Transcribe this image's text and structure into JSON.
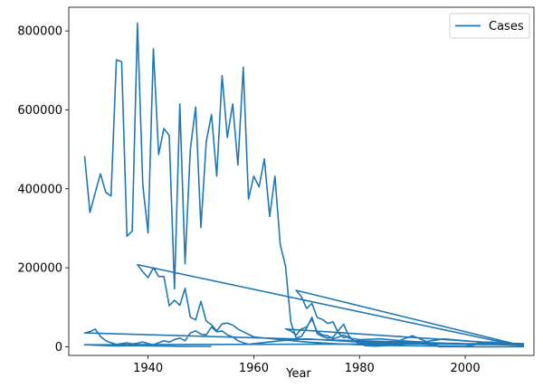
{
  "chart_data": {
    "type": "line",
    "title": "",
    "xlabel": "Year",
    "ylabel": "",
    "xlim": [
      1925,
      2013
    ],
    "ylim": [
      -22000,
      860000
    ],
    "xticks": [
      1940,
      1960,
      1980,
      2000
    ],
    "yticks": [
      0,
      200000,
      400000,
      600000,
      800000
    ],
    "ytick_labels": [
      "0",
      "200000",
      "400000",
      "600000",
      "800000"
    ],
    "grid": false,
    "legend_position": "top-right",
    "color": "#1f77b4",
    "series": [
      {
        "name": "Cases",
        "x": [
          1928,
          1929,
          1930,
          1931,
          1932,
          1933,
          1934,
          1935,
          1936,
          1937,
          1938,
          1939,
          1940,
          1941,
          1942,
          1943,
          1944,
          1945,
          1946,
          1947,
          1948,
          1949,
          1950,
          1951,
          1952,
          1953,
          1954,
          1955,
          1956,
          1957,
          1958,
          1959,
          1960,
          1961,
          1962,
          1963,
          1964,
          1965,
          1966,
          1967,
          1968,
          1969,
          1970,
          1971,
          1972,
          1973,
          1974,
          1975,
          1976,
          1977,
          1978,
          1979,
          1980,
          1981,
          1982,
          1983,
          1985,
          1990,
          1995,
          2000,
          2005,
          2011,
          1938,
          1939,
          1940,
          1941,
          1942,
          1943,
          1944,
          1945,
          1946,
          1947,
          1948,
          1949,
          1950,
          1951,
          1952,
          1953,
          1954,
          1955,
          1956,
          1957,
          1958,
          1960,
          1965,
          1970,
          1975,
          1980,
          1985,
          1990,
          1995,
          2000,
          2005,
          2011,
          1968,
          1969,
          1970,
          1971,
          1972,
          1973,
          1974,
          1975,
          1976,
          1977,
          1978,
          1979,
          1980,
          1982,
          1984,
          1986,
          1988,
          1990,
          1992,
          1994,
          1996,
          1998,
          2000,
          2002,
          2004,
          2006,
          2008,
          2010,
          2011,
          2010,
          1928,
          1929,
          1930,
          1931,
          1932,
          1933,
          1934,
          1935,
          1936,
          1937,
          1938,
          1939,
          1940,
          1941,
          1942,
          1943,
          1944,
          1945,
          1946,
          1947,
          1948,
          1949,
          1950,
          1951,
          1952,
          1953,
          1954,
          1955,
          1956,
          1957,
          1958,
          1959,
          1960,
          1965,
          1970,
          1980,
          1990,
          2000,
          2011,
          1966,
          1967,
          1968,
          1969,
          1970,
          1971,
          1972,
          1973,
          1974,
          1975,
          1976,
          1977,
          1978,
          1980,
          1984,
          1988,
          1992,
          1996,
          2000,
          2005,
          2011,
          1928,
          1930,
          1932,
          1934,
          1936,
          1938,
          1940,
          1942,
          1944,
          1946,
          1948,
          1950,
          1952
        ],
        "y": [
          483000,
          340000,
          390000,
          438000,
          391000,
          382000,
          727000,
          722000,
          280000,
          293000,
          820000,
          410000,
          288000,
          755000,
          487000,
          553000,
          535000,
          147000,
          615000,
          210000,
          500000,
          607000,
          302000,
          520000,
          588000,
          432000,
          687000,
          530000,
          615000,
          460000,
          708000,
          374000,
          432000,
          405000,
          476000,
          330000,
          432000,
          260000,
          204000,
          63000,
          22000,
          26000,
          47000,
          75000,
          33000,
          26000,
          22000,
          24000,
          41000,
          57000,
          27000,
          14000,
          13000,
          3000,
          2000,
          1500,
          2800,
          28000,
          300,
          90,
          66,
          200,
          208000,
          190000,
          175000,
          200000,
          178000,
          178000,
          104000,
          118000,
          105000,
          148000,
          75000,
          68000,
          115000,
          65000,
          56000,
          40000,
          58000,
          60000,
          55000,
          45000,
          38000,
          25000,
          18000,
          12000,
          8000,
          5000,
          3500,
          2500,
          1500,
          800,
          12000,
          2000,
          143000,
          127000,
          97000,
          110000,
          74000,
          69000,
          59000,
          63000,
          35000,
          23000,
          26000,
          14000,
          8500,
          9000,
          10000,
          7000,
          6000,
          10000,
          7000,
          5000,
          8000,
          9000,
          7500,
          8000,
          12000,
          9000,
          8000,
          6000,
          5000,
          4000,
          35000,
          38000,
          45000,
          26000,
          15000,
          10000,
          6000,
          8000,
          10000,
          7000,
          9000,
          12000,
          8000,
          5000,
          10000,
          15000,
          12000,
          18000,
          22000,
          15000,
          35000,
          40000,
          32000,
          30000,
          50000,
          38000,
          40000,
          30000,
          25000,
          15000,
          10000,
          6000,
          8000,
          15000,
          20000,
          12000,
          8000,
          6000,
          5000,
          45000,
          40000,
          30000,
          45000,
          50000,
          70000,
          38000,
          30000,
          28000,
          20000,
          24000,
          30000,
          22000,
          18000,
          20000,
          15000,
          12000,
          20000,
          15000,
          10000,
          8000,
          5000,
          4000,
          3000,
          2000,
          2500,
          3000,
          2000,
          1800,
          1500,
          1200,
          1000,
          900,
          800
        ]
      }
    ]
  }
}
